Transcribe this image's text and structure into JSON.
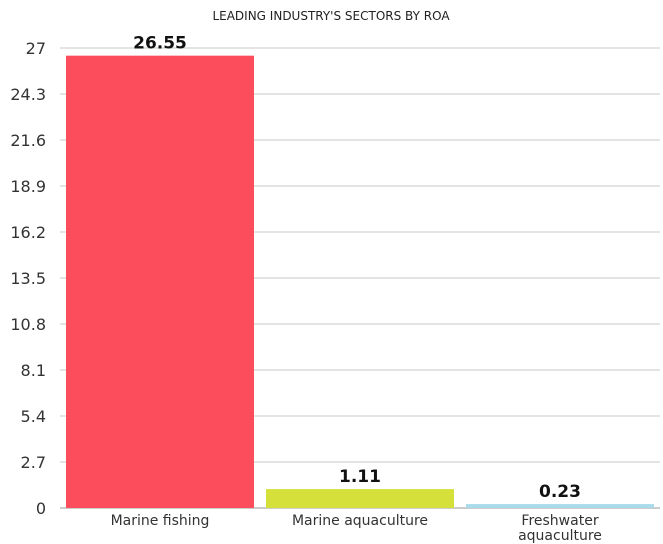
{
  "chart_data": {
    "type": "bar",
    "title": "LEADING INDUSTRY'S SECTORS BY ROA",
    "xlabel": "",
    "ylabel": "",
    "categories": [
      "Marine fishing",
      "Marine aquaculture",
      "Freshwater aquaculture"
    ],
    "category_lines": [
      [
        "Marine fishing"
      ],
      [
        "Marine aquaculture"
      ],
      [
        "Freshwater",
        "aquaculture"
      ]
    ],
    "values": [
      26.55,
      1.11,
      0.23
    ],
    "value_labels": [
      "26.55",
      "1.11",
      "0.23"
    ],
    "colors": [
      "#fb4d5c",
      "#d6e03a",
      "#a9dcea"
    ],
    "ylim": [
      0,
      27
    ],
    "yticks": [
      "0",
      "2.7",
      "5.4",
      "8.1",
      "10.8",
      "13.5",
      "16.2",
      "18.9",
      "21.6",
      "24.3",
      "27"
    ],
    "grid": true,
    "legend": "none"
  }
}
